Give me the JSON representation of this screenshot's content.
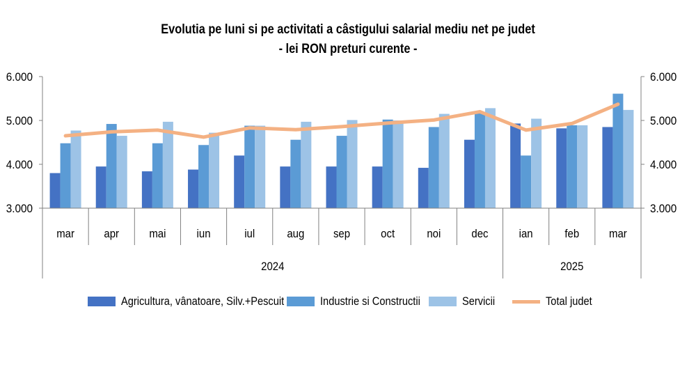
{
  "colors": {
    "agri": "#4472C4",
    "industrie": "#5B9BD5",
    "servicii": "#9DC3E6",
    "total": "#F4B183",
    "axis": "#808080"
  },
  "chart_data": {
    "type": "bar",
    "title": "Evolutia pe luni si pe activitati a câstigului salarial mediu net pe judet",
    "subtitle": "- lei RON preturi curente -",
    "categories": [
      "mar",
      "apr",
      "mai",
      "iun",
      "iul",
      "aug",
      "sep",
      "oct",
      "noi",
      "dec",
      "ian",
      "feb",
      "mar"
    ],
    "year_groups": [
      {
        "label": "2024",
        "count": 10
      },
      {
        "label": "2025",
        "count": 3
      }
    ],
    "ylim": [
      3000,
      6000
    ],
    "yticks": [
      "3.000",
      "4.000",
      "5.000",
      "6.000"
    ],
    "ytick_values": [
      3000,
      4000,
      5000,
      6000
    ],
    "series": [
      {
        "name": "Agricultura, vânatoare, Silv.+Pescuit",
        "type": "bar",
        "values": [
          3800,
          3950,
          3840,
          3880,
          4200,
          3950,
          3950,
          3950,
          3920,
          4560,
          4930,
          4820,
          4850
        ]
      },
      {
        "name": "Industrie si Constructii",
        "type": "bar",
        "values": [
          4480,
          4920,
          4480,
          4440,
          4880,
          4560,
          4650,
          5020,
          4850,
          5190,
          4200,
          4890,
          5610
        ]
      },
      {
        "name": "Servicii",
        "type": "bar",
        "values": [
          4770,
          4650,
          4970,
          4720,
          4880,
          4970,
          5010,
          5000,
          5150,
          5280,
          5040,
          4890,
          5240
        ]
      },
      {
        "name": "Total judet",
        "type": "line",
        "values": [
          4650,
          4740,
          4780,
          4620,
          4830,
          4790,
          4860,
          4940,
          5010,
          5200,
          4780,
          4930,
          5370
        ]
      }
    ]
  }
}
